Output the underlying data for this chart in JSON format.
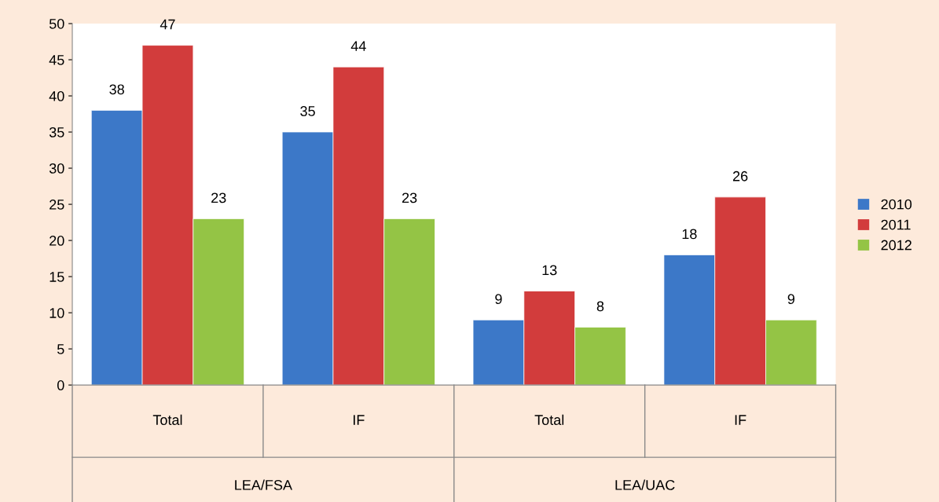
{
  "chart_data": {
    "type": "bar",
    "categories": [
      "Total",
      "IF",
      "Total",
      "IF"
    ],
    "series": [
      {
        "name": "2010",
        "color": "#3c78c8",
        "values": [
          38,
          35,
          9,
          18
        ]
      },
      {
        "name": "2011",
        "color": "#d23c3c",
        "values": [
          47,
          44,
          13,
          26
        ]
      },
      {
        "name": "2012",
        "color": "#94c445",
        "values": [
          23,
          23,
          8,
          9
        ]
      }
    ],
    "annotations": [
      "LEA/FSA",
      "LEA/UAC"
    ],
    "ylim": [
      0,
      50
    ],
    "yticks": [
      0,
      5,
      10,
      15,
      20,
      25,
      30,
      35,
      40,
      45,
      50
    ],
    "data_labels": true,
    "legend": "right",
    "grid": false
  }
}
